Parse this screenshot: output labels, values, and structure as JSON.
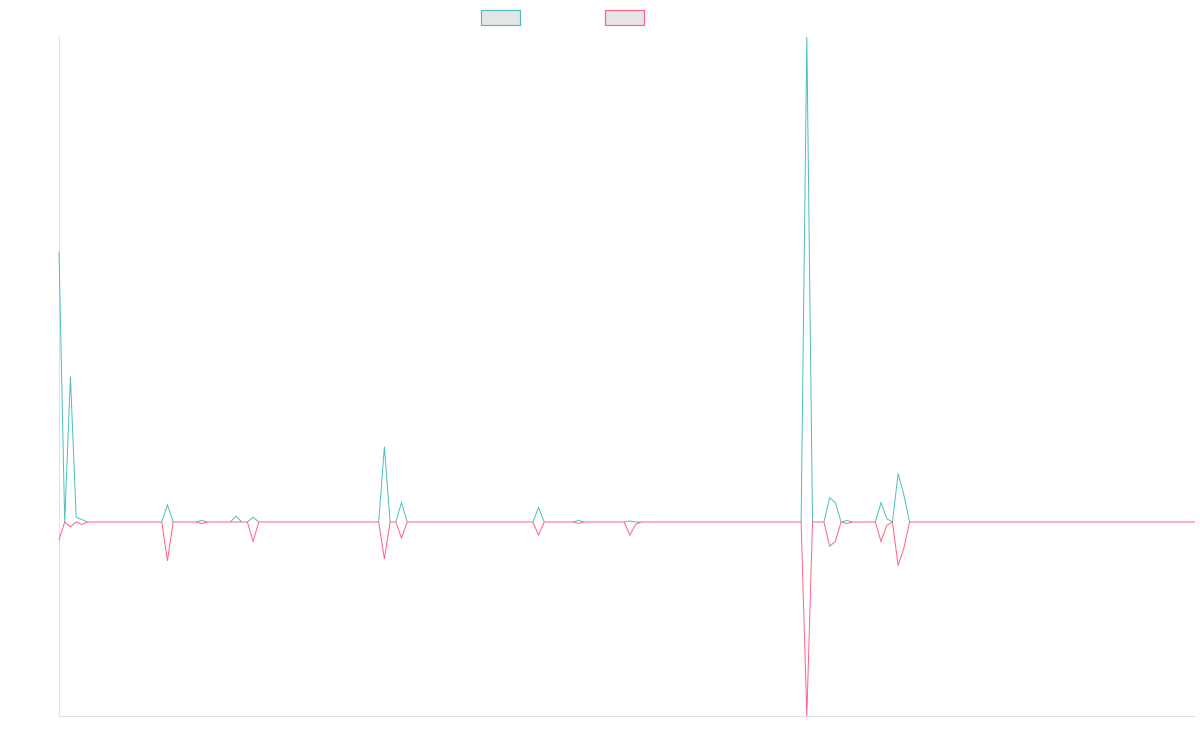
{
  "chart_data": {
    "type": "line",
    "title": "",
    "xlabel": "",
    "ylabel": "",
    "ylim": [
      -0.4,
      1.0
    ],
    "grid": false,
    "legend": {
      "placement": "top",
      "labels": [
        "",
        ""
      ]
    },
    "series": [
      {
        "color": "#4bc0c0",
        "legend_fill": "#e5e5e5",
        "values": [
          0.557,
          0,
          0.3,
          0.01,
          0.005,
          0,
          0,
          0,
          0,
          0,
          0,
          0,
          0,
          0,
          0,
          0,
          0,
          0,
          0,
          0.035,
          0,
          0,
          0,
          0,
          0,
          0.003,
          0,
          0,
          0,
          0,
          0,
          0.012,
          0,
          0,
          0.01,
          0,
          0,
          0,
          0,
          0,
          0,
          0,
          0,
          0,
          0,
          0,
          0,
          0,
          0,
          0,
          0,
          0,
          0,
          0,
          0,
          0,
          0,
          0.155,
          0,
          0,
          0.04,
          0,
          0,
          0,
          0,
          0,
          0,
          0,
          0,
          0,
          0,
          0,
          0,
          0,
          0,
          0,
          0,
          0,
          0,
          0,
          0,
          0,
          0,
          0,
          0.03,
          0,
          0,
          0,
          0,
          0,
          0,
          0.003,
          0,
          0,
          0,
          0,
          0,
          0,
          0,
          0,
          0.002,
          0,
          0,
          0,
          0,
          0,
          0,
          0,
          0,
          0,
          0,
          0,
          0,
          0,
          0,
          0,
          0,
          0,
          0,
          0,
          0,
          0,
          0,
          0,
          0,
          0,
          0,
          0,
          0,
          0,
          0,
          1.0,
          0,
          0,
          0,
          0.05,
          0.04,
          0,
          0.003,
          0,
          0,
          0,
          0,
          0,
          0.04,
          0.007,
          0,
          0.1,
          0.056,
          0,
          0,
          0,
          0,
          0,
          0,
          0,
          0,
          0,
          0,
          0,
          0,
          0,
          0,
          0,
          0,
          0,
          0,
          0,
          0,
          0,
          0,
          0,
          0,
          0,
          0,
          0,
          0,
          0,
          0,
          0,
          0,
          0,
          0,
          0,
          0,
          0,
          0,
          0,
          0,
          0,
          0,
          0,
          0,
          0,
          0,
          0,
          0,
          0,
          0,
          0
        ]
      },
      {
        "color": "#ff6384",
        "legend_fill": "#e5e5e5",
        "values": [
          -0.037,
          0,
          -0.01,
          0,
          -0.005,
          0,
          0,
          0,
          0,
          0,
          0,
          0,
          0,
          0,
          0,
          0,
          0,
          0,
          0,
          -0.08,
          0,
          0,
          0,
          0,
          0,
          -0.003,
          0,
          0,
          0,
          0,
          0,
          0,
          0,
          0,
          -0.04,
          0,
          0,
          0,
          0,
          0,
          0,
          0,
          0,
          0,
          0,
          0,
          0,
          0,
          0,
          0,
          0,
          0,
          0,
          0,
          0,
          0,
          0,
          -0.076,
          0,
          0,
          -0.033,
          0,
          0,
          0,
          0,
          0,
          0,
          0,
          0,
          0,
          0,
          0,
          0,
          0,
          0,
          0,
          0,
          0,
          0,
          0,
          0,
          0,
          0,
          0,
          -0.027,
          0,
          0,
          0,
          0,
          0,
          0,
          -0.003,
          0,
          0,
          0,
          0,
          0,
          0,
          0,
          0,
          -0.027,
          -0.005,
          0,
          0,
          0,
          0,
          0,
          0,
          0,
          0,
          0,
          0,
          0,
          0,
          0,
          0,
          0,
          0,
          0,
          0,
          0,
          0,
          0,
          0,
          0,
          0,
          0,
          0,
          0,
          0,
          0,
          -0.4,
          0,
          0,
          0,
          -0.05,
          -0.04,
          0,
          -0.003,
          0,
          0,
          0,
          0,
          0,
          -0.04,
          -0.007,
          0,
          -0.09,
          -0.054,
          0,
          0,
          0,
          0,
          0,
          0,
          0,
          0,
          0,
          0,
          0,
          0,
          0,
          0,
          0,
          0,
          0,
          0,
          0,
          0,
          0,
          0,
          0,
          0,
          0,
          0,
          0,
          0,
          0,
          0,
          0,
          0,
          0,
          0,
          0,
          0,
          0,
          0,
          0,
          0,
          0,
          0,
          0,
          0,
          0,
          0,
          0,
          0,
          0,
          0,
          0
        ]
      }
    ]
  }
}
